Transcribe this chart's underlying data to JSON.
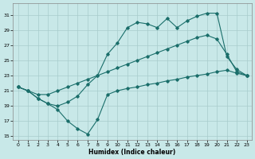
{
  "xlabel": "Humidex (Indice chaleur)",
  "bg_color": "#c8e8e8",
  "grid_color": "#a8cccc",
  "line_color": "#1a6e6a",
  "xlim": [
    -0.5,
    23.5
  ],
  "ylim": [
    14.5,
    32.5
  ],
  "yticks": [
    15,
    17,
    19,
    21,
    23,
    25,
    27,
    29,
    31
  ],
  "xticks": [
    0,
    1,
    2,
    3,
    4,
    5,
    6,
    7,
    8,
    9,
    10,
    11,
    12,
    13,
    14,
    15,
    16,
    17,
    18,
    19,
    20,
    21,
    22,
    23
  ],
  "line1_x": [
    0,
    1,
    2,
    3,
    4,
    5,
    6,
    7,
    8,
    9,
    10,
    11,
    12,
    13,
    14,
    15,
    16,
    17,
    18,
    19,
    20,
    21,
    22,
    23
  ],
  "line1_y": [
    21.5,
    21.0,
    20.0,
    19.3,
    18.5,
    17.0,
    16.0,
    15.3,
    17.2,
    20.5,
    21.0,
    21.3,
    21.5,
    21.8,
    22.0,
    22.3,
    22.5,
    22.8,
    23.0,
    23.2,
    23.5,
    23.7,
    23.3,
    23.0
  ],
  "line2_x": [
    0,
    1,
    2,
    3,
    4,
    5,
    6,
    7,
    8,
    9,
    10,
    11,
    12,
    13,
    14,
    15,
    16,
    17,
    18,
    19,
    20,
    21,
    22,
    23
  ],
  "line2_y": [
    21.5,
    21.0,
    20.0,
    19.3,
    19.0,
    19.5,
    20.3,
    21.8,
    23.0,
    25.8,
    27.3,
    29.3,
    30.0,
    29.8,
    29.3,
    30.5,
    29.3,
    30.2,
    30.8,
    31.2,
    31.2,
    25.5,
    23.8,
    23.0
  ],
  "line3_x": [
    0,
    1,
    2,
    3,
    4,
    5,
    6,
    7,
    8,
    9,
    10,
    11,
    12,
    13,
    14,
    15,
    16,
    17,
    18,
    19,
    20,
    21,
    22,
    23
  ],
  "line3_y": [
    21.5,
    21.0,
    20.5,
    20.5,
    21.0,
    21.5,
    22.0,
    22.5,
    23.0,
    23.5,
    24.0,
    24.5,
    25.0,
    25.5,
    26.0,
    26.5,
    27.0,
    27.5,
    28.0,
    28.3,
    27.8,
    25.8,
    23.5,
    23.0
  ]
}
